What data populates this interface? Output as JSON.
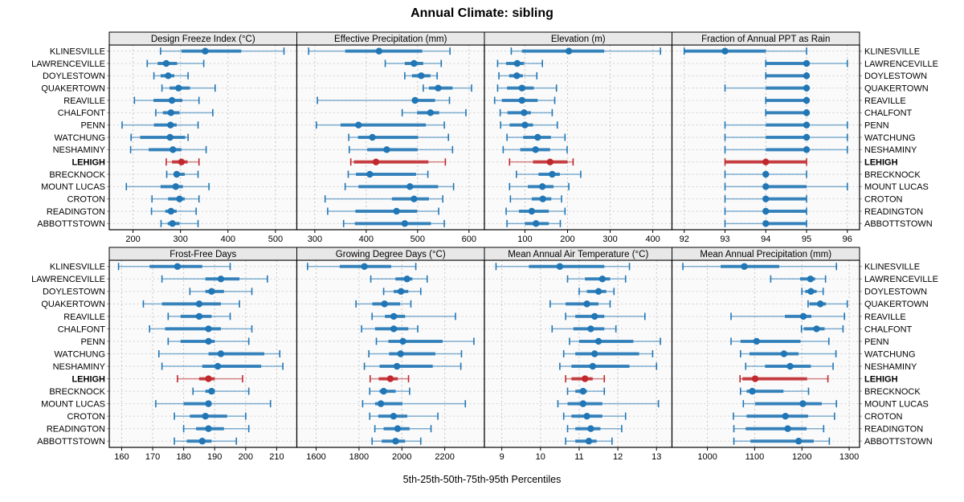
{
  "title": "Annual Climate: sibling",
  "caption": "5th-25th-50th-75th-95th Percentiles",
  "highlight_site": "LEHIGH",
  "sites": [
    "KLINESVILLE",
    "LAWRENCEVILLE",
    "DOYLESTOWN",
    "QUAKERTOWN",
    "REAVILLE",
    "CHALFONT",
    "PENN",
    "WATCHUNG",
    "NESHAMINY",
    "LEHIGH",
    "BRECKNOCK",
    "MOUNT LUCAS",
    "CROTON",
    "READINGTON",
    "ABBOTTSTOWN"
  ],
  "colors": {
    "series": "#2176b5",
    "series_light": "#7fb2d8",
    "highlight": "#c0282d",
    "strip_bg": "#e8e8e8",
    "panel_bg": "#fafafa",
    "grid": "#c6c6c6",
    "border": "#000000",
    "text": "#000000"
  },
  "chart_data": {
    "type": "percentile-dot-plot",
    "percentiles": [
      5,
      25,
      50,
      75,
      95
    ],
    "legend_position": "none",
    "grid": "dashed",
    "panels": [
      {
        "title": "Design Freeze Index (°C)",
        "slug": "design-freeze-index",
        "ticks": [
          200,
          300,
          400,
          500
        ],
        "xlim": [
          150,
          545
        ],
        "values": [
          [
            258,
            302,
            352,
            428,
            518
          ],
          [
            230,
            252,
            270,
            293,
            349
          ],
          [
            244,
            258,
            274,
            287,
            316
          ],
          [
            261,
            277,
            296,
            320,
            373
          ],
          [
            203,
            243,
            282,
            304,
            339
          ],
          [
            248,
            263,
            280,
            298,
            368
          ],
          [
            177,
            244,
            279,
            292,
            337
          ],
          [
            196,
            215,
            278,
            310,
            316
          ],
          [
            195,
            233,
            284,
            302,
            354
          ],
          [
            270,
            282,
            302,
            315,
            339
          ],
          [
            271,
            287,
            292,
            309,
            337
          ],
          [
            186,
            258,
            290,
            305,
            360
          ],
          [
            240,
            274,
            298,
            309,
            339
          ],
          [
            239,
            268,
            280,
            292,
            333
          ],
          [
            259,
            273,
            283,
            298,
            337
          ]
        ]
      },
      {
        "title": "Effective Precipitation (mm)",
        "slug": "effective-precipitation",
        "ticks": [
          300,
          400,
          500,
          600
        ],
        "xlim": [
          265,
          630
        ],
        "values": [
          [
            288,
            359,
            425,
            509,
            563
          ],
          [
            437,
            475,
            493,
            511,
            546
          ],
          [
            475,
            489,
            507,
            525,
            538
          ],
          [
            511,
            522,
            540,
            568,
            605
          ],
          [
            305,
            490,
            495,
            534,
            562
          ],
          [
            470,
            499,
            525,
            542,
            594
          ],
          [
            303,
            350,
            385,
            516,
            552
          ],
          [
            366,
            384,
            412,
            501,
            560
          ],
          [
            367,
            402,
            440,
            500,
            568
          ],
          [
            370,
            376,
            419,
            521,
            554
          ],
          [
            365,
            380,
            407,
            497,
            520
          ],
          [
            359,
            385,
            485,
            540,
            570
          ],
          [
            320,
            450,
            493,
            522,
            549
          ],
          [
            325,
            379,
            459,
            499,
            541
          ],
          [
            356,
            378,
            475,
            526,
            552
          ]
        ]
      },
      {
        "title": "Elevation (m)",
        "slug": "elevation",
        "ticks": [
          100,
          200,
          300,
          400
        ],
        "xlim": [
          5,
          445
        ],
        "values": [
          [
            68,
            93,
            203,
            286,
            418
          ],
          [
            36,
            56,
            82,
            98,
            141
          ],
          [
            39,
            63,
            81,
            95,
            128
          ],
          [
            36,
            58,
            93,
            121,
            174
          ],
          [
            29,
            46,
            93,
            130,
            170
          ],
          [
            42,
            59,
            98,
            114,
            164
          ],
          [
            43,
            64,
            100,
            119,
            176
          ],
          [
            58,
            96,
            130,
            161,
            194
          ],
          [
            49,
            89,
            125,
            159,
            199
          ],
          [
            64,
            119,
            159,
            200,
            213
          ],
          [
            80,
            132,
            164,
            182,
            231
          ],
          [
            64,
            107,
            141,
            167,
            203
          ],
          [
            66,
            116,
            142,
            162,
            186
          ],
          [
            56,
            86,
            116,
            156,
            194
          ],
          [
            58,
            100,
            126,
            156,
            183
          ]
        ]
      },
      {
        "title": "Fraction of Annual PPT as Rain",
        "slug": "fraction-ppt-rain",
        "ticks": [
          92,
          93,
          94,
          95,
          96
        ],
        "xlim": [
          91.7,
          96.3
        ],
        "values": [
          [
            92,
            92,
            93,
            94,
            95
          ],
          [
            94,
            94,
            95,
            95,
            96
          ],
          [
            94,
            94,
            95,
            95,
            95
          ],
          [
            93,
            94,
            95,
            95,
            95
          ],
          [
            94,
            94,
            95,
            95,
            95
          ],
          [
            94,
            94,
            95,
            95,
            95
          ],
          [
            93,
            94,
            95,
            95,
            96
          ],
          [
            93,
            94,
            95,
            95,
            96
          ],
          [
            93,
            94,
            95,
            95,
            96
          ],
          [
            93,
            93,
            94,
            95,
            95
          ],
          [
            93,
            94,
            94,
            94,
            95
          ],
          [
            93,
            94,
            94,
            95,
            96
          ],
          [
            93,
            94,
            94,
            95,
            95
          ],
          [
            93,
            94,
            94,
            95,
            95
          ],
          [
            93,
            94,
            94,
            95,
            95
          ]
        ]
      },
      {
        "title": "Frost-Free Days",
        "slug": "frost-free-days",
        "ticks": [
          160,
          170,
          180,
          190,
          200,
          210
        ],
        "xlim": [
          156,
          216.5
        ],
        "values": [
          [
            159,
            169,
            178,
            186,
            195
          ],
          [
            173,
            187,
            192,
            198,
            207
          ],
          [
            182,
            187,
            189,
            193,
            202
          ],
          [
            167,
            173,
            185,
            192,
            198
          ],
          [
            175,
            179,
            185,
            189,
            195
          ],
          [
            169,
            174,
            188,
            192,
            202
          ],
          [
            175,
            179,
            188,
            190,
            201
          ],
          [
            172,
            188,
            192,
            206,
            211
          ],
          [
            173,
            186,
            191,
            205,
            212
          ],
          [
            178,
            185,
            188,
            190,
            199
          ],
          [
            183,
            187,
            189,
            190,
            201
          ],
          [
            171,
            180,
            188,
            189,
            208
          ],
          [
            177,
            182,
            187,
            194,
            200
          ],
          [
            180,
            184,
            188,
            193,
            201
          ],
          [
            177,
            181,
            186,
            189,
            197
          ]
        ]
      },
      {
        "title": "Growing Degree Days (°C)",
        "slug": "growing-degree-days",
        "ticks": [
          1600,
          1800,
          2000,
          2200
        ],
        "xlim": [
          1510,
          2385
        ],
        "values": [
          [
            1560,
            1710,
            1825,
            1950,
            2065
          ],
          [
            1855,
            1970,
            2024,
            2049,
            2118
          ],
          [
            1915,
            1962,
            1996,
            2030,
            2088
          ],
          [
            1786,
            1862,
            1919,
            1992,
            2042
          ],
          [
            1861,
            1921,
            1962,
            2015,
            2250
          ],
          [
            1812,
            1875,
            1962,
            2030,
            2074
          ],
          [
            1881,
            1937,
            2005,
            2190,
            2336
          ],
          [
            1846,
            1940,
            1994,
            2156,
            2278
          ],
          [
            1825,
            1896,
            1977,
            2144,
            2275
          ],
          [
            1852,
            1892,
            1946,
            1981,
            2031
          ],
          [
            1850,
            1896,
            1915,
            1971,
            2036
          ],
          [
            1817,
            1875,
            1902,
            2002,
            2296
          ],
          [
            1850,
            1890,
            1961,
            2025,
            2168
          ],
          [
            1874,
            1915,
            1980,
            2036,
            2136
          ],
          [
            1861,
            1906,
            1971,
            2015,
            2088
          ]
        ]
      },
      {
        "title": "Mean Annual Air Temperature (°C)",
        "slug": "mean-annual-air-temperature",
        "ticks": [
          9,
          10,
          11,
          12,
          13
        ],
        "xlim": [
          8.55,
          13.4
        ],
        "values": [
          [
            8.85,
            9.7,
            10.5,
            11.65,
            12.3
          ],
          [
            10.7,
            11.15,
            11.6,
            11.8,
            12.2
          ],
          [
            11.0,
            11.2,
            11.5,
            11.7,
            11.9
          ],
          [
            10.25,
            10.65,
            11.2,
            11.5,
            11.8
          ],
          [
            10.65,
            10.9,
            11.4,
            11.65,
            12.7
          ],
          [
            10.3,
            10.85,
            11.3,
            11.65,
            11.95
          ],
          [
            10.75,
            11.0,
            11.5,
            12.4,
            13.1
          ],
          [
            10.6,
            10.9,
            11.4,
            12.55,
            12.9
          ],
          [
            10.5,
            10.8,
            11.35,
            12.3,
            13.0
          ],
          [
            10.65,
            10.8,
            11.15,
            11.35,
            11.65
          ],
          [
            10.7,
            10.9,
            11.1,
            11.2,
            11.65
          ],
          [
            10.45,
            10.7,
            11.1,
            11.6,
            13.05
          ],
          [
            10.6,
            10.8,
            11.2,
            11.6,
            12.2
          ],
          [
            10.7,
            10.9,
            11.3,
            11.55,
            12.1
          ],
          [
            10.65,
            10.9,
            11.25,
            11.45,
            11.85
          ]
        ]
      },
      {
        "title": "Mean Annual Precipitation (mm)",
        "slug": "mean-annual-precipitation",
        "ticks": [
          1000,
          1100,
          1200,
          1300
        ],
        "xlim": [
          925,
          1322
        ],
        "values": [
          [
            948,
            1028,
            1078,
            1152,
            1273
          ],
          [
            1134,
            1196,
            1218,
            1228,
            1250
          ],
          [
            1200,
            1207,
            1219,
            1231,
            1245
          ],
          [
            1213,
            1216,
            1239,
            1251,
            1296
          ],
          [
            1050,
            1164,
            1203,
            1220,
            1290
          ],
          [
            1199,
            1204,
            1231,
            1248,
            1287
          ],
          [
            1050,
            1070,
            1104,
            1197,
            1257
          ],
          [
            1070,
            1089,
            1162,
            1193,
            1272
          ],
          [
            1081,
            1122,
            1175,
            1219,
            1266
          ],
          [
            1069,
            1074,
            1101,
            1211,
            1255
          ],
          [
            1070,
            1083,
            1095,
            1161,
            1214
          ],
          [
            1076,
            1101,
            1202,
            1242,
            1273
          ],
          [
            1055,
            1083,
            1165,
            1213,
            1269
          ],
          [
            1056,
            1081,
            1170,
            1210,
            1246
          ],
          [
            1056,
            1091,
            1193,
            1225,
            1258
          ]
        ]
      }
    ]
  }
}
